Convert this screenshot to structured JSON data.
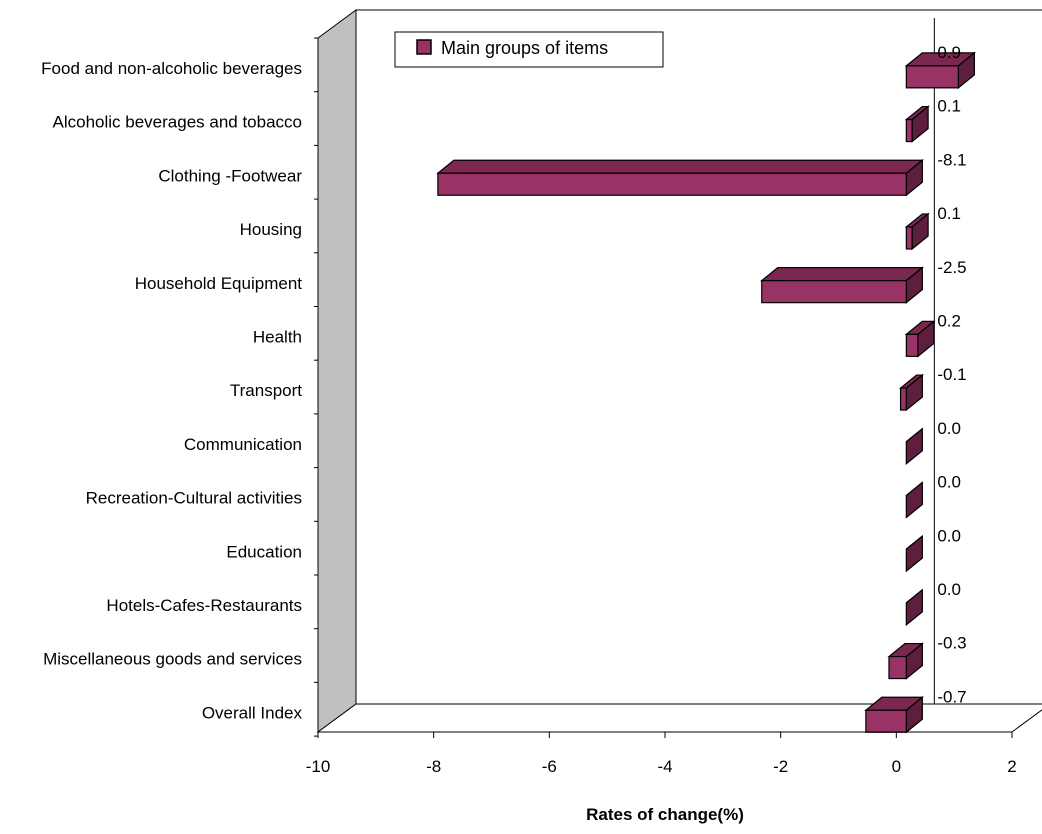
{
  "chart_data": {
    "type": "bar",
    "orientation": "horizontal",
    "three_d": true,
    "categories": [
      "Food and non-alcoholic beverages",
      "Alcoholic beverages and tobacco",
      "Clothing -Footwear",
      "Housing",
      "Household Equipment",
      "Health",
      "Transport",
      "Communication",
      "Recreation-Cultural activities",
      "Education",
      "Hotels-Cafes-Restaurants",
      "Miscellaneous goods and services",
      "Overall Index"
    ],
    "series": [
      {
        "name": "Main groups of items",
        "values": [
          0.9,
          0.1,
          -8.1,
          0.1,
          -2.5,
          0.2,
          -0.1,
          0.0,
          0.0,
          0.0,
          0.0,
          -0.3,
          -0.7
        ],
        "labels": [
          "0.9",
          "0.1",
          "-8.1",
          "0.1",
          "-2.5",
          "0.2",
          "-0.1",
          "0.0",
          "0.0",
          "0.0",
          "0.0",
          "-0.3",
          "-0.7"
        ],
        "color": "#993366"
      }
    ],
    "xlabel": "Rates of change(%)",
    "xlim": [
      -10,
      2
    ],
    "xticks": [
      -10,
      -8,
      -6,
      -4,
      -2,
      0,
      2
    ],
    "xtick_labels": [
      "-10",
      "-8",
      "-6",
      "-4",
      "-2",
      "0",
      "2"
    ],
    "legend_position": "top",
    "grid": false
  }
}
